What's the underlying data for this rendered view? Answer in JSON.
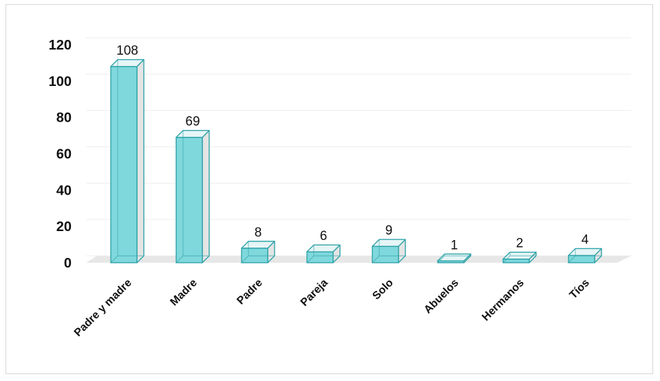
{
  "chart_data": {
    "type": "bar",
    "categories": [
      "Padre y madre",
      "Madre",
      "Padre",
      "Pareja",
      "Solo",
      "Abuelos",
      "Hermanos",
      "Tíos"
    ],
    "values": [
      108,
      69,
      8,
      6,
      9,
      1,
      2,
      4
    ],
    "data_labels": [
      "108",
      "69",
      "8",
      "6",
      "9",
      "1",
      "2",
      "4"
    ],
    "y_ticks": [
      "0",
      "20",
      "40",
      "60",
      "80",
      "100",
      "120"
    ],
    "ylim": [
      0,
      120
    ],
    "grid": true,
    "legend": "none",
    "colors": {
      "bar_front": "#7fd8dc",
      "bar_side": "#e4e4e4",
      "bar_top": "#e6f5f6",
      "bar_edge": "#2fa3a8",
      "floor": "#e7e7e7",
      "grid": "#eeeeee"
    }
  }
}
